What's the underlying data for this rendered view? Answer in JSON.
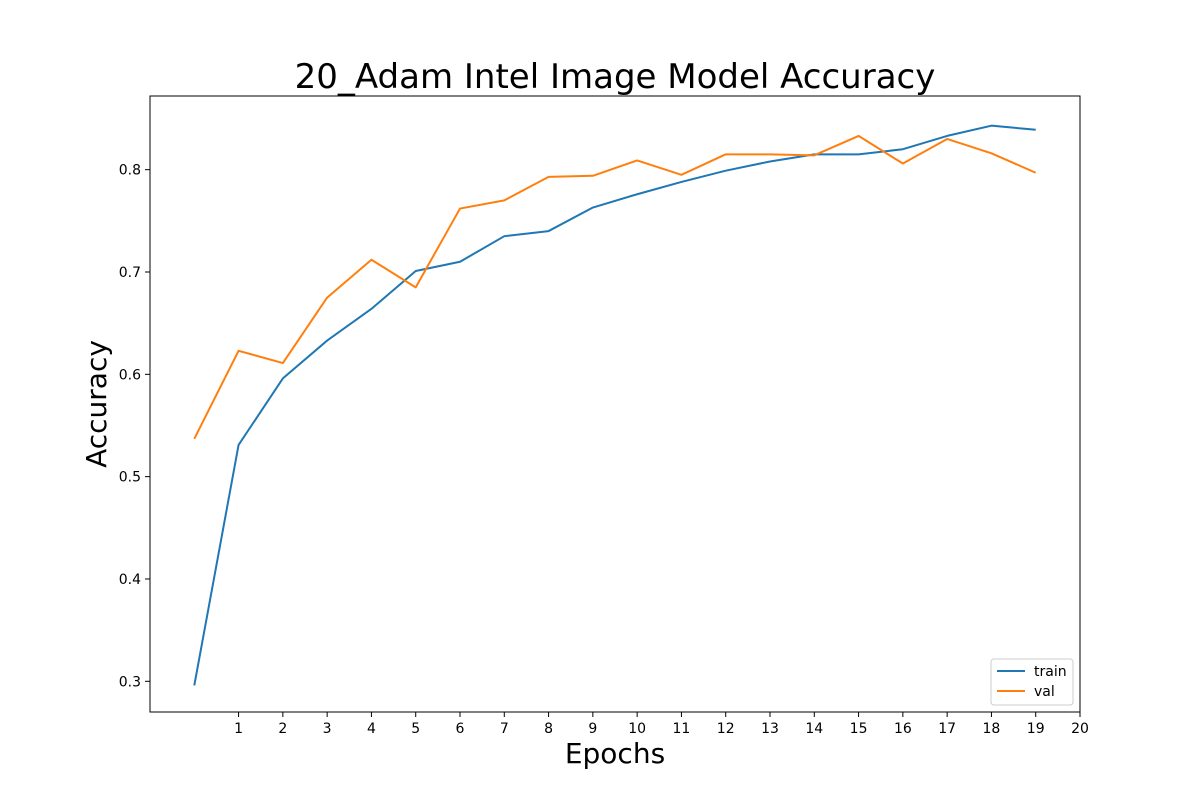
{
  "chart_data": {
    "type": "line",
    "title": "20_Adam Intel Image Model Accuracy",
    "xlabel": "Epochs",
    "ylabel": "Accuracy",
    "xlim": [
      -1,
      20
    ],
    "ylim": [
      0.27,
      0.872
    ],
    "x_ticks": [
      1,
      2,
      3,
      4,
      5,
      6,
      7,
      8,
      9,
      10,
      11,
      12,
      13,
      14,
      15,
      16,
      17,
      18,
      19,
      20
    ],
    "y_ticks": [
      0.3,
      0.4,
      0.5,
      0.6,
      0.7,
      0.8
    ],
    "y_tick_labels": [
      "0.3",
      "0.4",
      "0.5",
      "0.6",
      "0.7",
      "0.8"
    ],
    "grid": false,
    "legend_position": "lower right",
    "x": [
      0,
      1,
      2,
      3,
      4,
      5,
      6,
      7,
      8,
      9,
      10,
      11,
      12,
      13,
      14,
      15,
      16,
      17,
      18,
      19
    ],
    "series": [
      {
        "name": "train",
        "color": "#1f77b4",
        "values": [
          0.296,
          0.531,
          0.596,
          0.633,
          0.664,
          0.701,
          0.71,
          0.735,
          0.74,
          0.763,
          0.776,
          0.788,
          0.799,
          0.808,
          0.815,
          0.815,
          0.82,
          0.833,
          0.843,
          0.839
        ]
      },
      {
        "name": "val",
        "color": "#ff7f0e",
        "values": [
          0.537,
          0.623,
          0.611,
          0.675,
          0.712,
          0.685,
          0.762,
          0.77,
          0.793,
          0.794,
          0.809,
          0.795,
          0.815,
          0.815,
          0.814,
          0.833,
          0.806,
          0.83,
          0.816,
          0.797
        ]
      }
    ]
  }
}
